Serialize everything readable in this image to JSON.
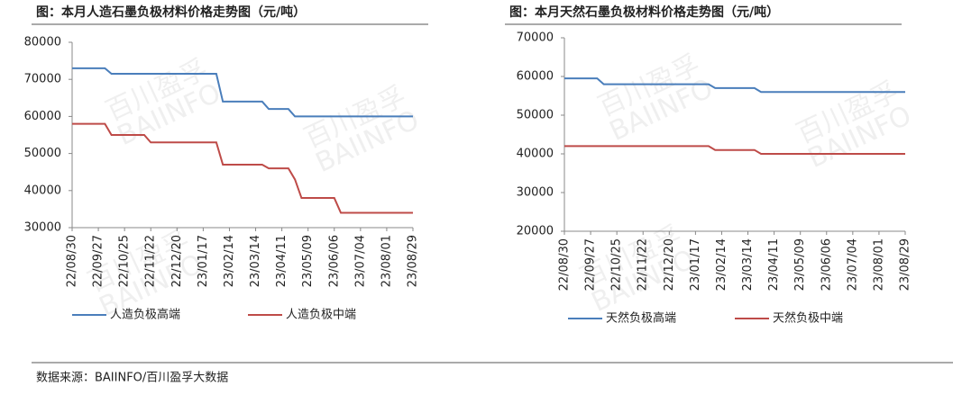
{
  "chart_data": [
    {
      "type": "line",
      "title": "图：本月人造石墨负极材料价格走势图（元/吨）",
      "categories": [
        "22/08/30",
        null,
        null,
        null,
        "22/09/27",
        null,
        null,
        null,
        "22/10/25",
        null,
        null,
        null,
        "22/11/22",
        null,
        null,
        null,
        "22/12/20",
        null,
        null,
        null,
        "23/01/17",
        null,
        null,
        null,
        "23/02/14",
        null,
        null,
        null,
        "23/03/14",
        null,
        null,
        null,
        "23/04/11",
        null,
        null,
        null,
        "23/05/09",
        null,
        null,
        null,
        "23/06/06",
        null,
        null,
        null,
        "23/07/04",
        null,
        null,
        null,
        "23/08/01",
        null,
        null,
        null,
        "23/08/29"
      ],
      "series": [
        {
          "name": "人造负极高端",
          "color": "#4a7ebb",
          "values": [
            73000,
            73000,
            73000,
            73000,
            73000,
            73000,
            71500,
            71500,
            71500,
            71500,
            71500,
            71500,
            71500,
            71500,
            71500,
            71500,
            71500,
            71500,
            71500,
            71500,
            71500,
            71500,
            71500,
            64000,
            64000,
            64000,
            64000,
            64000,
            64000,
            64000,
            62000,
            62000,
            62000,
            62000,
            60000,
            60000,
            60000,
            60000,
            60000,
            60000,
            60000,
            60000,
            60000,
            60000,
            60000,
            60000,
            60000,
            60000,
            60000,
            60000,
            60000,
            60000,
            60000
          ]
        },
        {
          "name": "人造负极中端",
          "color": "#be4b48",
          "values": [
            58000,
            58000,
            58000,
            58000,
            58000,
            58000,
            55000,
            55000,
            55000,
            55000,
            55000,
            55000,
            53000,
            53000,
            53000,
            53000,
            53000,
            53000,
            53000,
            53000,
            53000,
            53000,
            53000,
            47000,
            47000,
            47000,
            47000,
            47000,
            47000,
            47000,
            46000,
            46000,
            46000,
            46000,
            43000,
            38000,
            38000,
            38000,
            38000,
            38000,
            38000,
            34000,
            34000,
            34000,
            34000,
            34000,
            34000,
            34000,
            34000,
            34000,
            34000,
            34000,
            34000
          ]
        }
      ],
      "ylim": [
        30000,
        80000
      ],
      "yticks": [
        30000,
        40000,
        50000,
        60000,
        70000,
        80000
      ]
    },
    {
      "type": "line",
      "title": "图：本月天然石墨负极材料价格走势图（元/吨）",
      "categories": [
        "22/08/30",
        null,
        null,
        null,
        "22/09/27",
        null,
        null,
        null,
        "22/10/25",
        null,
        null,
        null,
        "22/11/22",
        null,
        null,
        null,
        "22/12/20",
        null,
        null,
        null,
        "23/01/17",
        null,
        null,
        null,
        "23/02/14",
        null,
        null,
        null,
        "23/03/14",
        null,
        null,
        null,
        "23/04/11",
        null,
        null,
        null,
        "23/05/09",
        null,
        null,
        null,
        "23/06/06",
        null,
        null,
        null,
        "23/07/04",
        null,
        null,
        null,
        "23/08/01",
        null,
        null,
        null,
        "23/08/29"
      ],
      "series": [
        {
          "name": "天然负极高端",
          "color": "#4a7ebb",
          "values": [
            59500,
            59500,
            59500,
            59500,
            59500,
            59500,
            58000,
            58000,
            58000,
            58000,
            58000,
            58000,
            58000,
            58000,
            58000,
            58000,
            58000,
            58000,
            58000,
            58000,
            58000,
            58000,
            58000,
            57000,
            57000,
            57000,
            57000,
            57000,
            57000,
            57000,
            56000,
            56000,
            56000,
            56000,
            56000,
            56000,
            56000,
            56000,
            56000,
            56000,
            56000,
            56000,
            56000,
            56000,
            56000,
            56000,
            56000,
            56000,
            56000,
            56000,
            56000,
            56000,
            56000
          ]
        },
        {
          "name": "天然负极中端",
          "color": "#be4b48",
          "values": [
            42000,
            42000,
            42000,
            42000,
            42000,
            42000,
            42000,
            42000,
            42000,
            42000,
            42000,
            42000,
            42000,
            42000,
            42000,
            42000,
            42000,
            42000,
            42000,
            42000,
            42000,
            42000,
            42000,
            41000,
            41000,
            41000,
            41000,
            41000,
            41000,
            41000,
            40000,
            40000,
            40000,
            40000,
            40000,
            40000,
            40000,
            40000,
            40000,
            40000,
            40000,
            40000,
            40000,
            40000,
            40000,
            40000,
            40000,
            40000,
            40000,
            40000,
            40000,
            40000,
            40000
          ]
        }
      ],
      "ylim": [
        20000,
        70000
      ],
      "yticks": [
        20000,
        30000,
        40000,
        50000,
        60000,
        70000
      ]
    }
  ],
  "watermark": [
    "百川盈孚",
    "BAIINFO"
  ],
  "source": "数据来源：BAIINFO/百川盈孚大数据"
}
